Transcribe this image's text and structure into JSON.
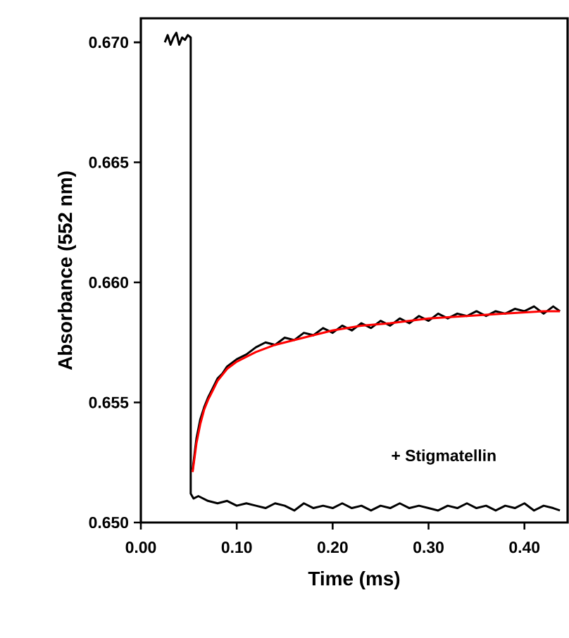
{
  "chart_data": {
    "type": "line",
    "xlabel": "Time (ms)",
    "ylabel": "Absorbance (552 nm)",
    "xlim": [
      0,
      0.445
    ],
    "ylim": [
      0.65,
      0.671
    ],
    "xticks": [
      {
        "value": 0,
        "label": "0.00"
      },
      {
        "value": 0.1,
        "label": "0.10"
      },
      {
        "value": 0.2,
        "label": "0.20"
      },
      {
        "value": 0.3,
        "label": "0.30"
      },
      {
        "value": 0.4,
        "label": "0.40"
      }
    ],
    "yticks": [
      {
        "value": 0.65,
        "label": "0.650"
      },
      {
        "value": 0.655,
        "label": "0.655"
      },
      {
        "value": 0.66,
        "label": "0.660"
      },
      {
        "value": 0.665,
        "label": "0.665"
      },
      {
        "value": 0.67,
        "label": "0.670"
      }
    ],
    "series": [
      {
        "color": "#000000",
        "x": [
          0.054,
          0.058,
          0.062,
          0.066,
          0.07,
          0.075,
          0.08,
          0.085,
          0.09,
          0.1,
          0.11,
          0.12,
          0.13,
          0.14,
          0.15,
          0.16,
          0.17,
          0.18,
          0.19,
          0.2,
          0.21,
          0.22,
          0.23,
          0.24,
          0.25,
          0.26,
          0.27,
          0.28,
          0.29,
          0.3,
          0.31,
          0.32,
          0.33,
          0.34,
          0.35,
          0.36,
          0.37,
          0.38,
          0.39,
          0.4,
          0.41,
          0.42,
          0.43,
          0.437
        ],
        "values": [
          0.6522,
          0.6535,
          0.6543,
          0.6548,
          0.6552,
          0.6556,
          0.656,
          0.6562,
          0.6565,
          0.6568,
          0.657,
          0.6573,
          0.6575,
          0.6574,
          0.6577,
          0.6576,
          0.6579,
          0.6578,
          0.6581,
          0.6579,
          0.6582,
          0.658,
          0.6583,
          0.6581,
          0.6584,
          0.6582,
          0.6585,
          0.6583,
          0.6586,
          0.6584,
          0.6587,
          0.6585,
          0.6587,
          0.6586,
          0.6588,
          0.6586,
          0.6588,
          0.6587,
          0.6589,
          0.6588,
          0.659,
          0.6587,
          0.659,
          0.6588
        ]
      },
      {
        "color": "#000000",
        "x": [
          0.025,
          0.028,
          0.031,
          0.034,
          0.037,
          0.04,
          0.043,
          0.046,
          0.049,
          0.052,
          0.052,
          0.055,
          0.06,
          0.07,
          0.08,
          0.09,
          0.1,
          0.11,
          0.12,
          0.13,
          0.14,
          0.15,
          0.16,
          0.17,
          0.18,
          0.19,
          0.2,
          0.21,
          0.22,
          0.23,
          0.24,
          0.25,
          0.26,
          0.27,
          0.28,
          0.29,
          0.3,
          0.31,
          0.32,
          0.33,
          0.34,
          0.35,
          0.36,
          0.37,
          0.38,
          0.39,
          0.4,
          0.41,
          0.42,
          0.43,
          0.437
        ],
        "values": [
          0.67,
          0.6703,
          0.6699,
          0.6702,
          0.6704,
          0.6699,
          0.6702,
          0.6701,
          0.6703,
          0.6702,
          0.6512,
          0.651,
          0.6511,
          0.6509,
          0.6508,
          0.6509,
          0.6507,
          0.6508,
          0.6507,
          0.6506,
          0.6508,
          0.6507,
          0.6505,
          0.6508,
          0.6506,
          0.6507,
          0.6506,
          0.6508,
          0.6506,
          0.6507,
          0.6505,
          0.6507,
          0.6506,
          0.6508,
          0.6506,
          0.6507,
          0.6506,
          0.6505,
          0.6507,
          0.6506,
          0.6508,
          0.6506,
          0.6507,
          0.6505,
          0.6507,
          0.6506,
          0.6508,
          0.6505,
          0.6507,
          0.6506,
          0.6505
        ]
      },
      {
        "color": "#ff0000",
        "x": [
          0.054,
          0.058,
          0.062,
          0.066,
          0.07,
          0.075,
          0.08,
          0.09,
          0.1,
          0.12,
          0.14,
          0.16,
          0.18,
          0.2,
          0.23,
          0.26,
          0.3,
          0.34,
          0.38,
          0.42,
          0.437
        ],
        "values": [
          0.6521,
          0.6533,
          0.6541,
          0.6547,
          0.6551,
          0.6555,
          0.6559,
          0.6564,
          0.6567,
          0.6571,
          0.6574,
          0.6576,
          0.6578,
          0.658,
          0.6582,
          0.6583,
          0.6585,
          0.6586,
          0.6587,
          0.6588,
          0.6588
        ]
      }
    ],
    "annotations": [
      "+ Stigmatellin"
    ]
  }
}
